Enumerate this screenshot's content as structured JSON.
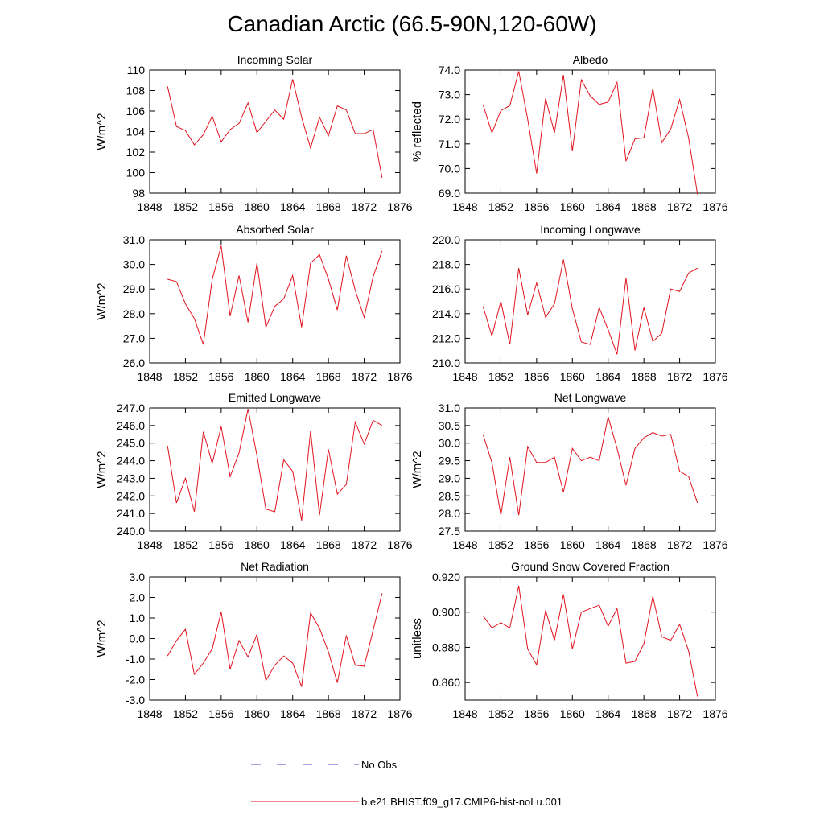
{
  "figure": {
    "title": "Canadian Arctic (66.5-90N,120-60W)",
    "legend": [
      {
        "label": "No Obs",
        "style": "dashed",
        "color": "#4a4ac8"
      },
      {
        "label": "b.e21.BHIST.f09_g17.CMIP6-hist-noLu.001",
        "style": "solid",
        "color": "#e0141e"
      }
    ]
  },
  "chart_data": [
    {
      "type": "line",
      "title": "Incoming Solar",
      "ylabel": "W/m^2",
      "xlim": [
        1848,
        1876
      ],
      "ylim": [
        98,
        110
      ],
      "xticks": [
        1848,
        1852,
        1856,
        1860,
        1864,
        1868,
        1872,
        1876
      ],
      "xtick_labels": [
        "1848",
        "1852",
        "1856",
        "1860",
        "1864",
        "1868",
        "1872",
        "1876"
      ],
      "yticks": [
        98,
        100,
        102,
        104,
        106,
        108,
        110
      ],
      "ytick_labels": [
        "98",
        "100",
        "102",
        "104",
        "106",
        "108",
        "110"
      ],
      "x": [
        1850,
        1851,
        1852,
        1853,
        1854,
        1855,
        1856,
        1857,
        1858,
        1859,
        1860,
        1861,
        1862,
        1863,
        1864,
        1865,
        1866,
        1867,
        1868,
        1869,
        1870,
        1871,
        1872,
        1873,
        1874
      ],
      "series": [
        {
          "name": "b.e21.BHIST.f09_g17.CMIP6-hist-noLu.001",
          "color": "#e0141e",
          "values": [
            108.4,
            104.5,
            104.1,
            102.7,
            103.7,
            105.5,
            103.0,
            104.2,
            104.8,
            106.8,
            103.9,
            105.0,
            106.1,
            105.2,
            109.1,
            105.4,
            102.4,
            105.4,
            103.6,
            106.5,
            106.1,
            103.8,
            103.8,
            104.2,
            99.5
          ]
        }
      ]
    },
    {
      "type": "line",
      "title": "Albedo",
      "ylabel": "% reflected",
      "xlim": [
        1848,
        1876
      ],
      "ylim": [
        69.0,
        74.0
      ],
      "xticks": [
        1848,
        1852,
        1856,
        1860,
        1864,
        1868,
        1872,
        1876
      ],
      "xtick_labels": [
        "1848",
        "1852",
        "1856",
        "1860",
        "1864",
        "1868",
        "1872",
        "1876"
      ],
      "yticks": [
        69.0,
        70.0,
        71.0,
        72.0,
        73.0,
        74.0
      ],
      "ytick_labels": [
        "69.0",
        "70.0",
        "71.0",
        "72.0",
        "73.0",
        "74.0"
      ],
      "x": [
        1850,
        1851,
        1852,
        1853,
        1854,
        1855,
        1856,
        1857,
        1858,
        1859,
        1860,
        1861,
        1862,
        1863,
        1864,
        1865,
        1866,
        1867,
        1868,
        1869,
        1870,
        1871,
        1872,
        1873,
        1874
      ],
      "series": [
        {
          "name": "b.e21.BHIST.f09_g17.CMIP6-hist-noLu.001",
          "color": "#e0141e",
          "values": [
            72.6,
            71.45,
            72.35,
            72.55,
            73.95,
            72.0,
            69.8,
            72.85,
            71.45,
            73.8,
            70.7,
            73.6,
            72.95,
            72.6,
            72.7,
            73.5,
            70.3,
            71.2,
            71.25,
            73.25,
            71.05,
            71.6,
            72.8,
            71.25,
            68.95
          ]
        }
      ]
    },
    {
      "type": "line",
      "title": "Absorbed Solar",
      "ylabel": "W/m^2",
      "xlim": [
        1848,
        1876
      ],
      "ylim": [
        26.0,
        31.0
      ],
      "xticks": [
        1848,
        1852,
        1856,
        1860,
        1864,
        1868,
        1872,
        1876
      ],
      "xtick_labels": [
        "1848",
        "1852",
        "1856",
        "1860",
        "1864",
        "1868",
        "1872",
        "1876"
      ],
      "yticks": [
        26.0,
        27.0,
        28.0,
        29.0,
        30.0,
        31.0
      ],
      "ytick_labels": [
        "26.0",
        "27.0",
        "28.0",
        "29.0",
        "30.0",
        "31.0"
      ],
      "x": [
        1850,
        1851,
        1852,
        1853,
        1854,
        1855,
        1856,
        1857,
        1858,
        1859,
        1860,
        1861,
        1862,
        1863,
        1864,
        1865,
        1866,
        1867,
        1868,
        1869,
        1870,
        1871,
        1872,
        1873,
        1874
      ],
      "series": [
        {
          "name": "b.e21.BHIST.f09_g17.CMIP6-hist-noLu.001",
          "color": "#e0141e",
          "values": [
            29.4,
            29.3,
            28.4,
            27.8,
            26.75,
            29.4,
            30.75,
            27.9,
            29.55,
            27.65,
            30.05,
            27.45,
            28.3,
            28.6,
            29.55,
            27.45,
            30.05,
            30.4,
            29.4,
            28.15,
            30.35,
            28.95,
            27.85,
            29.5,
            30.55
          ]
        }
      ]
    },
    {
      "type": "line",
      "title": "Incoming Longwave",
      "ylabel": "",
      "xlim": [
        1848,
        1876
      ],
      "ylim": [
        210.0,
        220.0
      ],
      "xticks": [
        1848,
        1852,
        1856,
        1860,
        1864,
        1868,
        1872,
        1876
      ],
      "xtick_labels": [
        "1848",
        "1852",
        "1856",
        "1860",
        "1864",
        "1868",
        "1872",
        "1876"
      ],
      "yticks": [
        210.0,
        212.0,
        214.0,
        216.0,
        218.0,
        220.0
      ],
      "ytick_labels": [
        "210.0",
        "212.0",
        "214.0",
        "216.0",
        "218.0",
        "220.0"
      ],
      "x": [
        1850,
        1851,
        1852,
        1853,
        1854,
        1855,
        1856,
        1857,
        1858,
        1859,
        1860,
        1861,
        1862,
        1863,
        1864,
        1865,
        1866,
        1867,
        1868,
        1869,
        1870,
        1871,
        1872,
        1873,
        1874
      ],
      "series": [
        {
          "name": "b.e21.BHIST.f09_g17.CMIP6-hist-noLu.001",
          "color": "#e0141e",
          "values": [
            214.6,
            212.2,
            215.0,
            211.5,
            217.7,
            213.9,
            216.5,
            213.7,
            214.8,
            218.4,
            214.4,
            211.7,
            211.5,
            214.5,
            212.7,
            210.7,
            216.9,
            211.0,
            214.5,
            211.75,
            212.4,
            216.0,
            215.8,
            217.3,
            217.7
          ]
        }
      ]
    },
    {
      "type": "line",
      "title": "Emitted Longwave",
      "ylabel": "W/m^2",
      "xlim": [
        1848,
        1876
      ],
      "ylim": [
        240.0,
        247.0
      ],
      "xticks": [
        1848,
        1852,
        1856,
        1860,
        1864,
        1868,
        1872,
        1876
      ],
      "xtick_labels": [
        "1848",
        "1852",
        "1856",
        "1860",
        "1864",
        "1868",
        "1872",
        "1876"
      ],
      "yticks": [
        240.0,
        241.0,
        242.0,
        243.0,
        244.0,
        245.0,
        246.0,
        247.0
      ],
      "ytick_labels": [
        "240.0",
        "241.0",
        "242.0",
        "243.0",
        "244.0",
        "245.0",
        "246.0",
        "247.0"
      ],
      "x": [
        1850,
        1851,
        1852,
        1853,
        1854,
        1855,
        1856,
        1857,
        1858,
        1859,
        1860,
        1861,
        1862,
        1863,
        1864,
        1865,
        1866,
        1867,
        1868,
        1869,
        1870,
        1871,
        1872,
        1873,
        1874
      ],
      "series": [
        {
          "name": "b.e21.BHIST.f09_g17.CMIP6-hist-noLu.001",
          "color": "#e0141e",
          "values": [
            244.85,
            241.6,
            243.0,
            241.1,
            245.65,
            243.85,
            245.95,
            243.1,
            244.45,
            246.95,
            244.3,
            241.25,
            241.1,
            244.05,
            243.4,
            240.6,
            245.7,
            240.9,
            244.65,
            242.1,
            242.65,
            246.2,
            244.95,
            246.3,
            246.0
          ]
        }
      ]
    },
    {
      "type": "line",
      "title": "Net Longwave",
      "ylabel": "W/m^2",
      "xlim": [
        1848,
        1876
      ],
      "ylim": [
        27.5,
        31.0
      ],
      "xticks": [
        1848,
        1852,
        1856,
        1860,
        1864,
        1868,
        1872,
        1876
      ],
      "xtick_labels": [
        "1848",
        "1852",
        "1856",
        "1860",
        "1864",
        "1868",
        "1872",
        "1876"
      ],
      "yticks": [
        27.5,
        28.0,
        28.5,
        29.0,
        29.5,
        30.0,
        30.5,
        31.0
      ],
      "ytick_labels": [
        "27.5",
        "28.0",
        "28.5",
        "29.0",
        "29.5",
        "30.0",
        "30.5",
        "31.0"
      ],
      "x": [
        1850,
        1851,
        1852,
        1853,
        1854,
        1855,
        1856,
        1857,
        1858,
        1859,
        1860,
        1861,
        1862,
        1863,
        1864,
        1865,
        1866,
        1867,
        1868,
        1869,
        1870,
        1871,
        1872,
        1873,
        1874
      ],
      "series": [
        {
          "name": "b.e21.BHIST.f09_g17.CMIP6-hist-noLu.001",
          "color": "#e0141e",
          "values": [
            30.25,
            29.45,
            27.95,
            29.6,
            27.95,
            29.9,
            29.45,
            29.45,
            29.6,
            28.6,
            29.85,
            29.5,
            29.6,
            29.5,
            30.75,
            29.85,
            28.8,
            29.85,
            30.15,
            30.3,
            30.2,
            30.25,
            29.2,
            29.05,
            28.3
          ]
        }
      ]
    },
    {
      "type": "line",
      "title": "Net Radiation",
      "ylabel": "W/m^2",
      "xlim": [
        1848,
        1876
      ],
      "ylim": [
        -3.0,
        3.0
      ],
      "xticks": [
        1848,
        1852,
        1856,
        1860,
        1864,
        1868,
        1872,
        1876
      ],
      "xtick_labels": [
        "1848",
        "1852",
        "1856",
        "1860",
        "1864",
        "1868",
        "1872",
        "1876"
      ],
      "yticks": [
        -3.0,
        -2.0,
        -1.0,
        0.0,
        1.0,
        2.0,
        3.0
      ],
      "ytick_labels": [
        "-3.0",
        "-2.0",
        "-1.0",
        "0.0",
        "1.0",
        "2.0",
        "3.0"
      ],
      "x": [
        1850,
        1851,
        1852,
        1853,
        1854,
        1855,
        1856,
        1857,
        1858,
        1859,
        1860,
        1861,
        1862,
        1863,
        1864,
        1865,
        1866,
        1867,
        1868,
        1869,
        1870,
        1871,
        1872,
        1873,
        1874
      ],
      "series": [
        {
          "name": "b.e21.BHIST.f09_g17.CMIP6-hist-noLu.001",
          "color": "#e0141e",
          "values": [
            -0.85,
            -0.1,
            0.45,
            -1.75,
            -1.2,
            -0.5,
            1.3,
            -1.5,
            -0.1,
            -0.9,
            0.2,
            -2.05,
            -1.3,
            -0.85,
            -1.2,
            -2.35,
            1.25,
            0.5,
            -0.65,
            -2.15,
            0.15,
            -1.3,
            -1.35,
            0.4,
            2.2
          ]
        }
      ]
    },
    {
      "type": "line",
      "title": "Ground Snow Covered Fraction",
      "ylabel": "unitless",
      "xlim": [
        1848,
        1876
      ],
      "ylim": [
        0.85,
        0.92
      ],
      "xticks": [
        1848,
        1852,
        1856,
        1860,
        1864,
        1868,
        1872,
        1876
      ],
      "xtick_labels": [
        "1848",
        "1852",
        "1856",
        "1860",
        "1864",
        "1868",
        "1872",
        "1876"
      ],
      "yticks": [
        0.86,
        0.88,
        0.9,
        0.92
      ],
      "ytick_labels": [
        "0.860",
        "0.880",
        "0.900",
        "0.920"
      ],
      "x": [
        1850,
        1851,
        1852,
        1853,
        1854,
        1855,
        1856,
        1857,
        1858,
        1859,
        1860,
        1861,
        1862,
        1863,
        1864,
        1865,
        1866,
        1867,
        1868,
        1869,
        1870,
        1871,
        1872,
        1873,
        1874
      ],
      "series": [
        {
          "name": "b.e21.BHIST.f09_g17.CMIP6-hist-noLu.001",
          "color": "#e0141e",
          "values": [
            0.898,
            0.891,
            0.894,
            0.891,
            0.915,
            0.879,
            0.87,
            0.901,
            0.884,
            0.91,
            0.879,
            0.9,
            0.902,
            0.904,
            0.892,
            0.902,
            0.871,
            0.872,
            0.882,
            0.909,
            0.886,
            0.884,
            0.893,
            0.878,
            0.852
          ]
        }
      ]
    }
  ]
}
